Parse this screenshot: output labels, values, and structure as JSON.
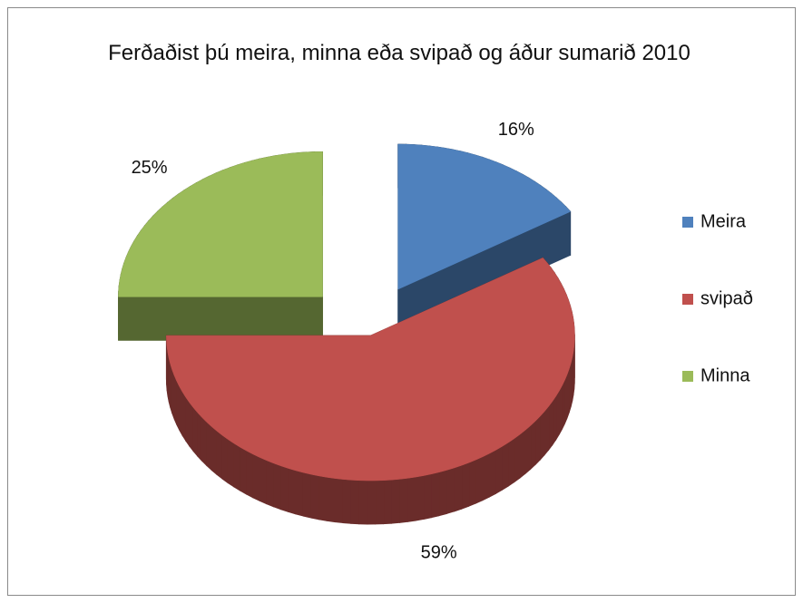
{
  "chart_data": {
    "type": "pie",
    "title": "Ferðaðist þú meira, minna eða svipað og áður sumarið 2010",
    "categories": [
      "Meira",
      "svipað",
      "Minna"
    ],
    "values": [
      16,
      59,
      25
    ],
    "value_labels": [
      "16%",
      "59%",
      "25%"
    ],
    "colors": [
      "#4f81bd",
      "#c0504d",
      "#9bbb59"
    ],
    "legend": "right"
  }
}
